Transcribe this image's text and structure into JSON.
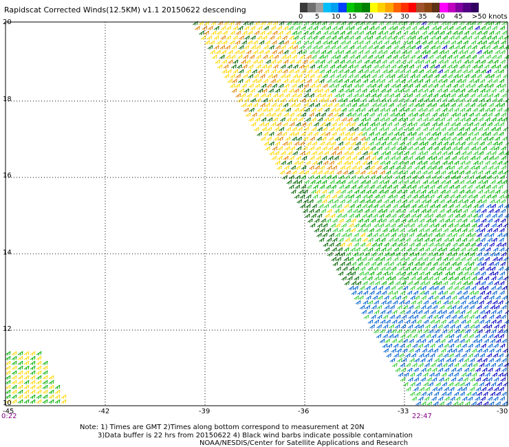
{
  "title": "Rapidscat Corrected Winds(12.5KM) v1.1 20150622 descending",
  "colorbar": {
    "colors": [
      "#3a3a3a",
      "#707070",
      "#a0a0a0",
      "#00bfff",
      "#00a0f0",
      "#0040ff",
      "#00c800",
      "#00a000",
      "#008000",
      "#ffff00",
      "#ffd000",
      "#ffa500",
      "#ff6000",
      "#ff3000",
      "#ff0000",
      "#a0522d",
      "#8b4513",
      "#5c3317",
      "#ff00ff",
      "#c000c0",
      "#8000a0",
      "#500080",
      "#300060"
    ],
    "labels": [
      "0",
      "5",
      "10",
      "15",
      "20",
      "25",
      "30",
      "35",
      "40",
      "45",
      ">50 knots"
    ]
  },
  "y_axis": {
    "labels": [
      "20",
      "18",
      "16",
      "14",
      "12",
      "10"
    ]
  },
  "x_axis": {
    "labels": [
      "-45",
      "-42",
      "-39",
      "-36",
      "-33",
      "-30"
    ]
  },
  "times": {
    "left": "0:22",
    "right": "22:47"
  },
  "notes": [
    "Note: 1) Times are GMT 2)Times along bottom correspond to measurement at 20N",
    "3)Data buffer is 22 hrs from 20150622 4) Black wind barbs indicate possible contamination",
    "NOAA/NESDIS/Center for Satellite Applications and Research"
  ],
  "map": {
    "grid": "dotted",
    "barb_colors": {
      "yellow": "#ffd700",
      "orange": "#e08000",
      "green": "#00b000",
      "darkgreen": "#006400",
      "lightgreen": "#33cc33",
      "blue": "#0060d0",
      "darkblue": "#0000c0"
    }
  }
}
